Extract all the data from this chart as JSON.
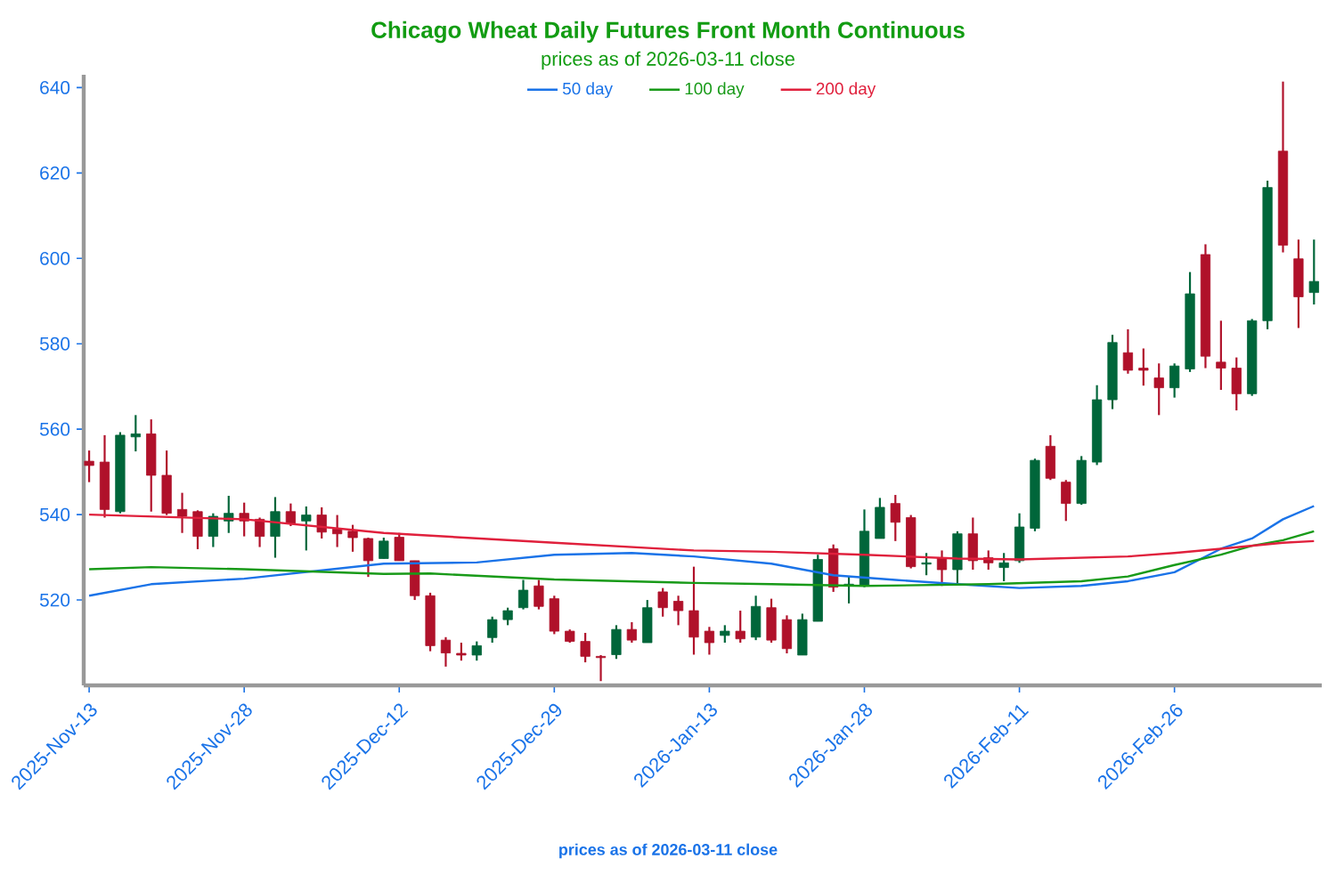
{
  "chart_data": {
    "type": "candlestick",
    "title": "Chicago Wheat Daily Futures Front Month Continuous",
    "subtitle": "prices as of 2026-03-11 close",
    "categories": [
      "2025-Nov-13",
      null,
      null,
      null,
      null,
      null,
      null,
      null,
      null,
      null,
      "2025-Nov-28",
      null,
      null,
      null,
      null,
      null,
      null,
      null,
      null,
      null,
      "2025-Dec-12",
      null,
      null,
      null,
      null,
      null,
      null,
      null,
      null,
      null,
      "2025-Dec-29",
      null,
      null,
      null,
      null,
      null,
      null,
      null,
      null,
      null,
      "2026-Jan-13",
      null,
      null,
      null,
      null,
      null,
      null,
      null,
      null,
      null,
      "2026-Jan-28",
      null,
      null,
      null,
      null,
      null,
      null,
      null,
      null,
      null,
      "2026-Feb-11",
      null,
      null,
      null,
      null,
      null,
      null,
      null,
      null,
      null,
      "2026-Feb-26",
      null,
      null,
      null,
      null,
      null,
      null,
      null,
      null,
      null
    ],
    "ohlc": [
      [
        552.5,
        555,
        547.6,
        551.5
      ],
      [
        552.3,
        558.6,
        539.3,
        541.2
      ],
      [
        540.7,
        559.3,
        540.3,
        558.6
      ],
      [
        558.2,
        563.3,
        554.8,
        558.9
      ],
      [
        558.9,
        562.3,
        540.7,
        549.2
      ],
      [
        549.2,
        555,
        539.9,
        540.3
      ],
      [
        541.2,
        545.1,
        535.7,
        539.6
      ],
      [
        540.7,
        541,
        531.9,
        534.9
      ],
      [
        534.9,
        540.3,
        532.4,
        539.6
      ],
      [
        538.5,
        544.4,
        535.7,
        540.3
      ],
      [
        540.3,
        542.8,
        534.9,
        538.5
      ],
      [
        538.9,
        539.3,
        532.4,
        534.9
      ],
      [
        534.9,
        544.1,
        529.9,
        540.7
      ],
      [
        540.7,
        542.6,
        537.3,
        537.9
      ],
      [
        538.5,
        541.9,
        531.6,
        539.9
      ],
      [
        539.9,
        541.7,
        534.4,
        535.9
      ],
      [
        536.6,
        539.9,
        532.4,
        535.5
      ],
      [
        536.1,
        537.6,
        531.3,
        534.6
      ],
      [
        534.4,
        534.6,
        525.4,
        529.2
      ],
      [
        529.7,
        534.6,
        529.7,
        533.8
      ],
      [
        534.7,
        535.7,
        529.2,
        529.2
      ],
      [
        529.2,
        529.2,
        520,
        521
      ],
      [
        521,
        521.7,
        508,
        509.3
      ],
      [
        510.6,
        511.3,
        504.4,
        507.6
      ],
      [
        507.5,
        510,
        505.8,
        507.1
      ],
      [
        507.1,
        510.3,
        505.8,
        509.3
      ],
      [
        511.2,
        516.1,
        510,
        515.4
      ],
      [
        515.4,
        518.2,
        514.1,
        517.5
      ],
      [
        518.2,
        524.7,
        517.8,
        522.3
      ],
      [
        523.3,
        524.7,
        517.8,
        518.5
      ],
      [
        520.3,
        521,
        512,
        512.7
      ],
      [
        512.7,
        513.1,
        510,
        510.3
      ],
      [
        510.3,
        512.3,
        505.4,
        506.8
      ],
      [
        506.8,
        507.1,
        501,
        506.5
      ],
      [
        507.2,
        514.1,
        506.2,
        513.1
      ],
      [
        513.1,
        514.8,
        510,
        510.6
      ],
      [
        510,
        520,
        510,
        518.2
      ],
      [
        521.9,
        522.8,
        516.1,
        518.2
      ],
      [
        519.7,
        521,
        514.1,
        517.5
      ],
      [
        517.5,
        527.8,
        507.2,
        511.3
      ],
      [
        512.7,
        513.7,
        507.2,
        510
      ],
      [
        511.7,
        514.1,
        510,
        512.7
      ],
      [
        512.7,
        517.5,
        510,
        510.9
      ],
      [
        511.3,
        521,
        510.6,
        518.5
      ],
      [
        518.2,
        520.3,
        510,
        510.6
      ],
      [
        515.4,
        516.4,
        507.5,
        508.6
      ],
      [
        507.1,
        516.8,
        507.1,
        515.4
      ],
      [
        515,
        530.6,
        515,
        529.5
      ],
      [
        532,
        533,
        521.9,
        523
      ],
      [
        523.3,
        525.5,
        519.2,
        523.7
      ],
      [
        523.3,
        541.2,
        523,
        536.1
      ],
      [
        534.4,
        543.9,
        534.4,
        541.7
      ],
      [
        542.6,
        544.6,
        533.8,
        538.2
      ],
      [
        539.3,
        539.9,
        527.4,
        527.8
      ],
      [
        528.4,
        531,
        525.8,
        528.7
      ],
      [
        529.9,
        531.6,
        523.3,
        527.1
      ],
      [
        527.1,
        536.1,
        523.7,
        535.5
      ],
      [
        535.5,
        539.3,
        527.1,
        529.2
      ],
      [
        529.9,
        531.6,
        527.1,
        528.7
      ],
      [
        527.6,
        531,
        524.4,
        528.7
      ],
      [
        529.2,
        540.3,
        528.7,
        537.1
      ],
      [
        536.8,
        553.1,
        536.1,
        552.7
      ],
      [
        556,
        558.6,
        548.1,
        548.5
      ],
      [
        547.6,
        548.1,
        538.5,
        542.6
      ],
      [
        542.6,
        553.7,
        542.3,
        552.7
      ],
      [
        552.3,
        570.3,
        551.6,
        566.9
      ],
      [
        566.9,
        582.1,
        564.7,
        580.3
      ],
      [
        577.9,
        583.4,
        573,
        573.8
      ],
      [
        574.3,
        578.9,
        570.2,
        573.8
      ],
      [
        572,
        575.4,
        563.3,
        569.7
      ],
      [
        569.7,
        575.4,
        567.4,
        574.8
      ],
      [
        574.1,
        596.8,
        573.4,
        591.7
      ],
      [
        600.9,
        603.3,
        574.3,
        577.1
      ],
      [
        575.7,
        585.4,
        569.2,
        574.3
      ],
      [
        574.3,
        576.8,
        564.4,
        568.3
      ],
      [
        568.3,
        585.8,
        567.8,
        585.4
      ],
      [
        585.4,
        618.2,
        583.4,
        616.6
      ],
      [
        625.1,
        641.4,
        601.4,
        603.1
      ],
      [
        599.9,
        604.4,
        583.7,
        591
      ],
      [
        592,
        604.4,
        589.2,
        594.6
      ]
    ],
    "series": [
      {
        "name": "50 day",
        "type": "line",
        "color": "#1a73e8",
        "values": [
          521,
          null,
          null,
          null,
          523.7,
          null,
          null,
          null,
          null,
          null,
          525,
          null,
          null,
          null,
          null,
          null,
          null,
          null,
          null,
          528.5,
          null,
          null,
          null,
          null,
          null,
          528.8,
          null,
          null,
          null,
          null,
          530.6,
          null,
          null,
          null,
          null,
          531,
          null,
          null,
          null,
          530.2,
          null,
          null,
          null,
          null,
          528.5,
          null,
          null,
          null,
          525.8,
          null,
          null,
          null,
          524.7,
          null,
          null,
          null,
          523.7,
          null,
          null,
          null,
          522.8,
          null,
          null,
          null,
          523.3,
          null,
          null,
          524.4,
          null,
          null,
          526.5,
          null,
          null,
          532,
          null,
          534.4,
          null,
          538.9,
          null,
          542
        ]
      },
      {
        "name": "100 day",
        "type": "line",
        "color": "#189a18",
        "values": [
          527.2,
          null,
          null,
          null,
          527.7,
          null,
          null,
          null,
          null,
          null,
          527.2,
          null,
          null,
          null,
          null,
          null,
          null,
          null,
          null,
          526.1,
          null,
          null,
          526.2,
          null,
          null,
          null,
          null,
          null,
          null,
          null,
          524.8,
          null,
          null,
          null,
          null,
          null,
          null,
          null,
          null,
          524,
          null,
          null,
          null,
          null,
          523.7,
          null,
          null,
          null,
          null,
          null,
          523.3,
          null,
          null,
          null,
          null,
          null,
          null,
          null,
          523.7,
          null,
          null,
          null,
          null,
          null,
          524.4,
          null,
          null,
          525.5,
          null,
          null,
          528.2,
          null,
          null,
          530.6,
          null,
          532.7,
          null,
          534,
          null,
          536.1
        ]
      },
      {
        "name": "200 day",
        "type": "line",
        "color": "#e0203c",
        "values": [
          540,
          null,
          null,
          null,
          null,
          null,
          null,
          null,
          null,
          null,
          538.9,
          null,
          null,
          null,
          null,
          null,
          null,
          null,
          null,
          535.7,
          null,
          null,
          null,
          null,
          null,
          null,
          null,
          null,
          null,
          null,
          533.4,
          null,
          null,
          null,
          null,
          null,
          null,
          null,
          null,
          531.6,
          null,
          null,
          null,
          null,
          531.3,
          null,
          null,
          null,
          null,
          null,
          530.6,
          null,
          null,
          null,
          null,
          null,
          529.7,
          null,
          null,
          null,
          529.5,
          null,
          null,
          null,
          null,
          null,
          null,
          530.2,
          null,
          null,
          531,
          null,
          null,
          532,
          null,
          null,
          null,
          533.4,
          null,
          533.8
        ]
      }
    ],
    "ylim": [
      500,
      643
    ],
    "yticks": [
      520,
      540,
      560,
      580,
      600,
      620,
      640
    ],
    "legend": "top",
    "annotations": [
      "prices as of 2026-03-11 close"
    ]
  }
}
